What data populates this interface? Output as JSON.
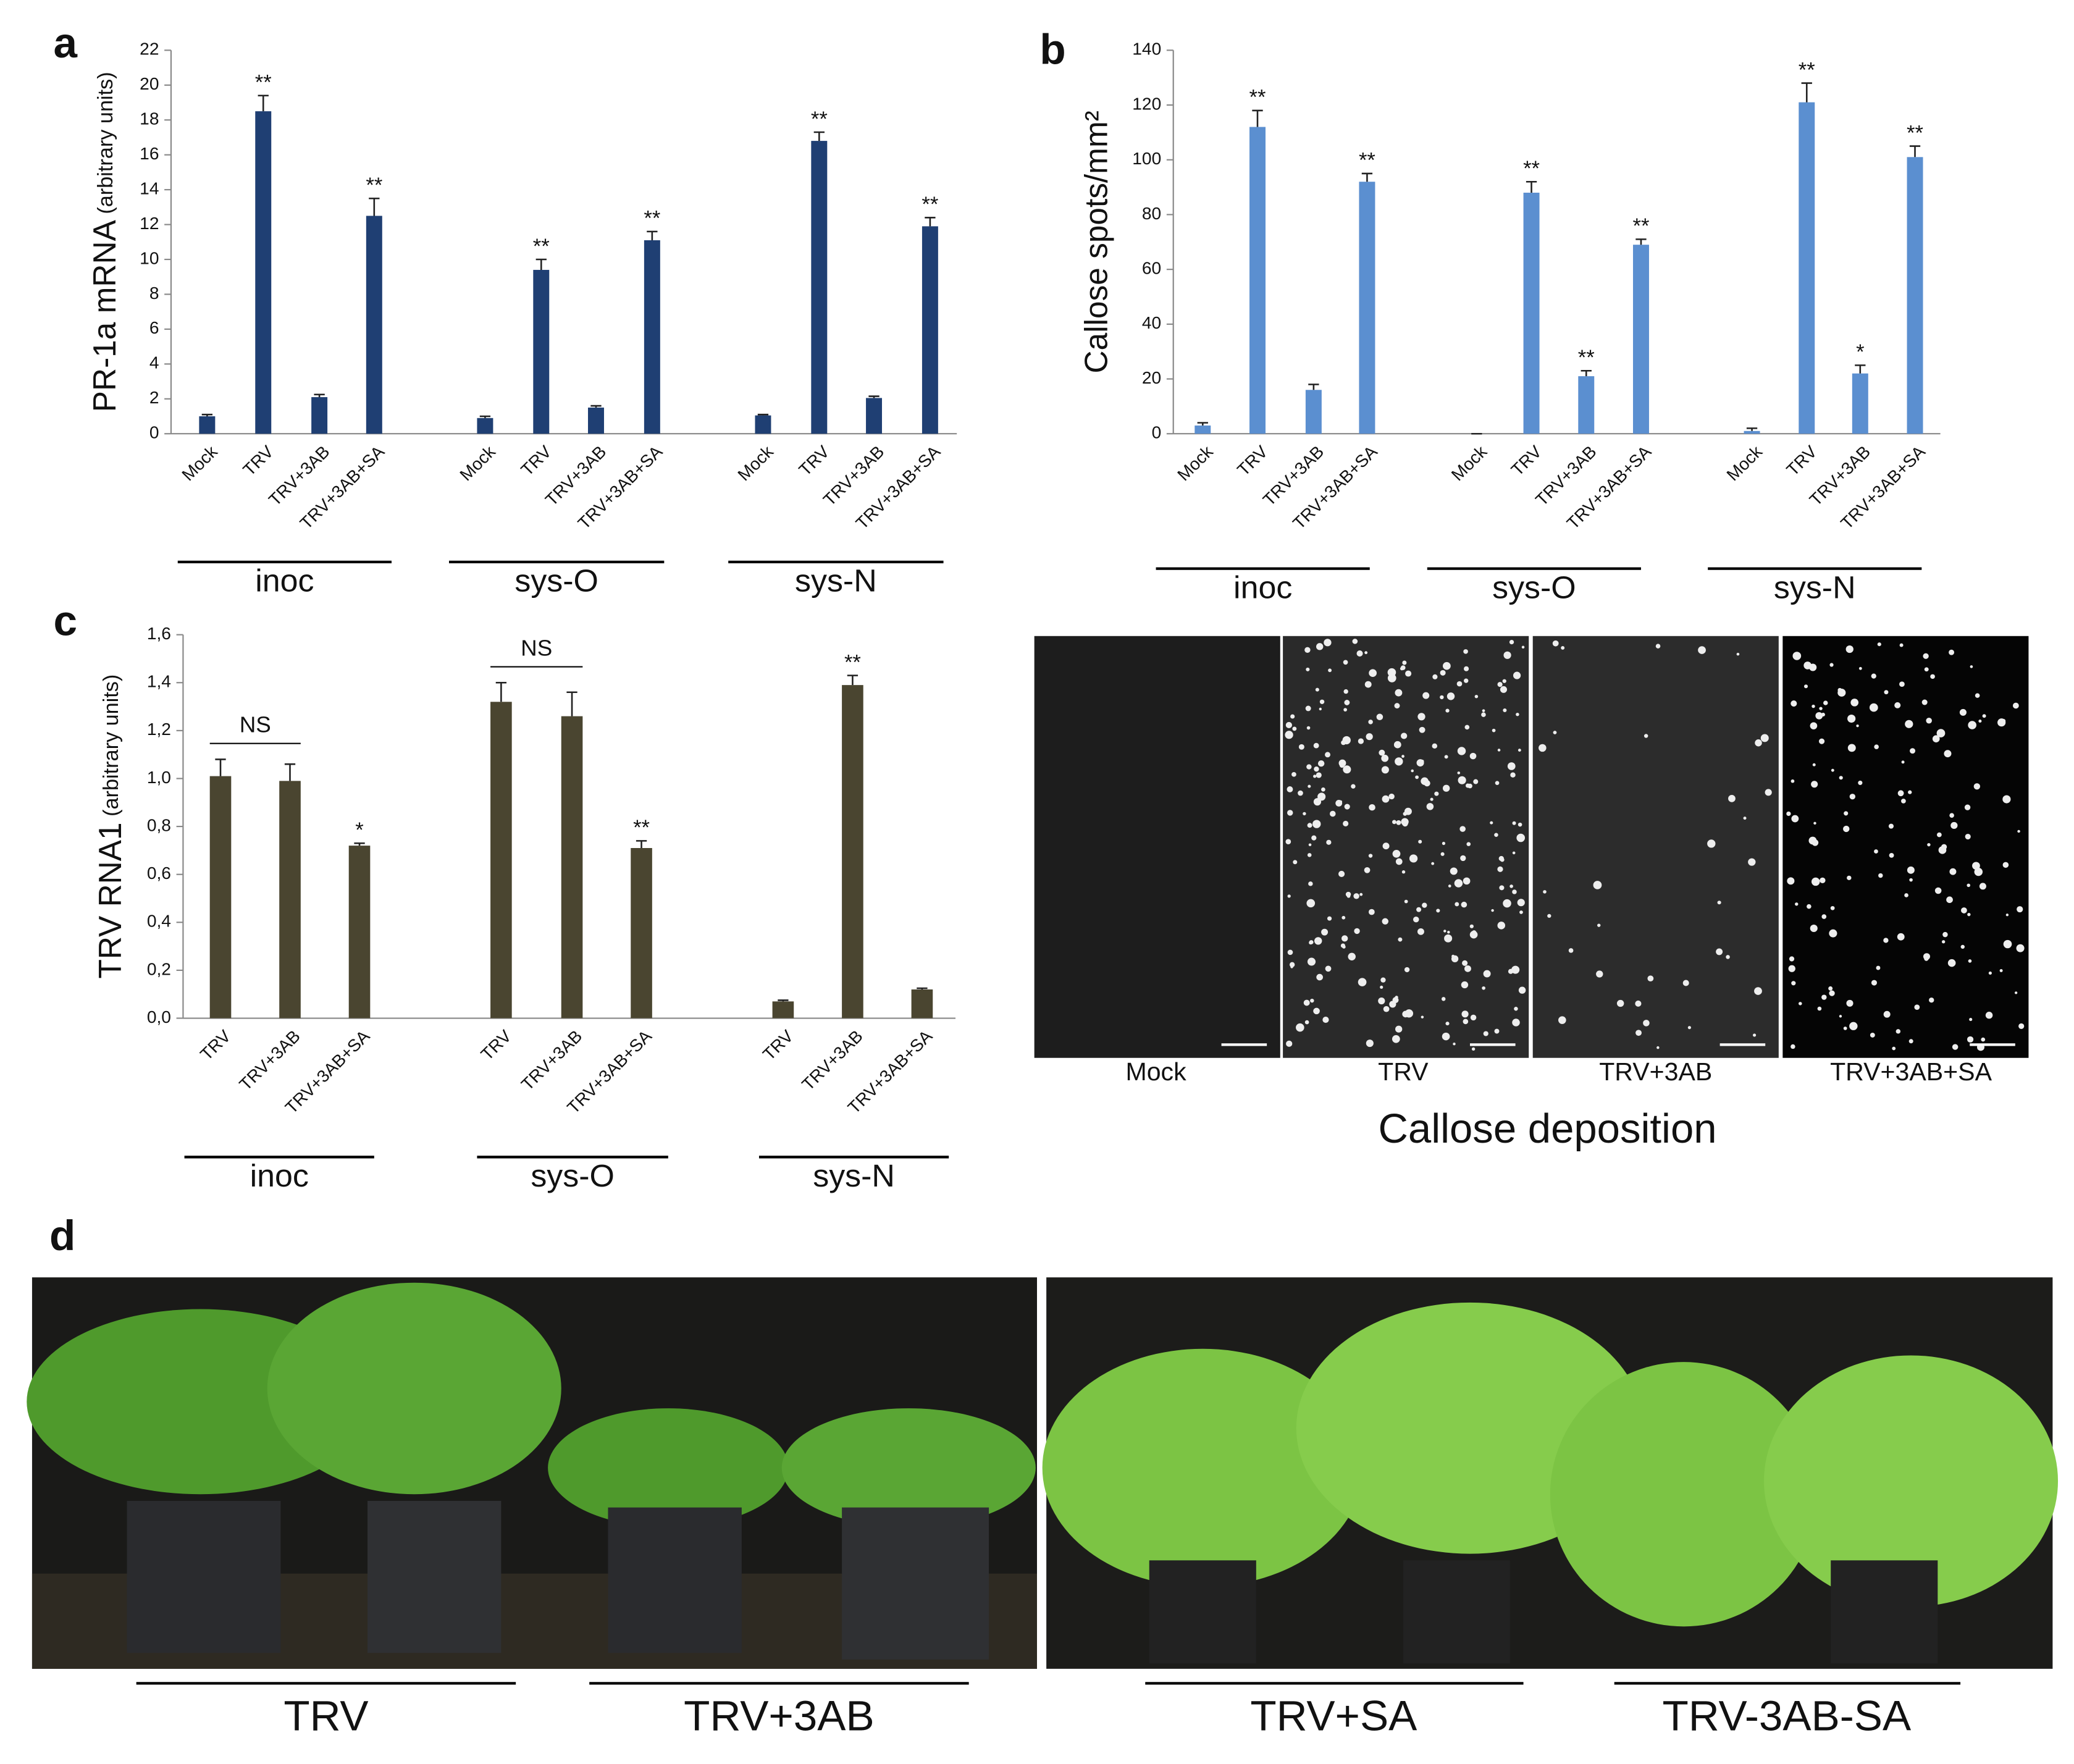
{
  "chart_data": [
    {
      "type": "bar",
      "panel": "a",
      "y_label": "PR-1a mRNA",
      "y_label_unit": "(arbitrary units)",
      "categories": [
        "Mock",
        "TRV",
        "TRV+3AB",
        "TRV+3AB+SA",
        "Mock",
        "TRV",
        "TRV+3AB",
        "TRV+3AB+SA",
        "Mock",
        "TRV",
        "TRV+3AB",
        "TRV+3AB+SA"
      ],
      "group_labels": [
        "inoc",
        "sys-O",
        "sys-N"
      ],
      "values": [
        1.0,
        18.5,
        2.1,
        12.5,
        0.9,
        9.4,
        1.5,
        11.1,
        1.05,
        16.8,
        2.05,
        11.9
      ],
      "errors": [
        0.1,
        0.9,
        0.15,
        1.0,
        0.1,
        0.6,
        0.1,
        0.5,
        0.05,
        0.5,
        0.1,
        0.5
      ],
      "annotations": [
        null,
        "**",
        null,
        "**",
        null,
        "**",
        null,
        "**",
        null,
        "**",
        null,
        "**"
      ],
      "color": "#1f3f73",
      "ylim": [
        0,
        22
      ],
      "yticks": [
        0,
        2,
        4,
        6,
        8,
        10,
        12,
        14,
        16,
        18,
        20,
        22
      ]
    },
    {
      "type": "bar",
      "panel": "b",
      "y_label": "Callose spots/mm²",
      "categories": [
        "Mock",
        "TRV",
        "TRV+3AB",
        "TRV+3AB+SA",
        "Mock",
        "TRV",
        "TRV+3AB",
        "TRV+3AB+SA",
        "Mock",
        "TRV",
        "TRV+3AB",
        "TRV+3AB+SA"
      ],
      "group_labels": [
        "inoc",
        "sys-O",
        "sys-N"
      ],
      "values": [
        3,
        112,
        16,
        92,
        0,
        88,
        21,
        69,
        1,
        121,
        22,
        101
      ],
      "errors": [
        1,
        6,
        2,
        3,
        0,
        4,
        2,
        2,
        1,
        7,
        3,
        4
      ],
      "annotations": [
        null,
        "**",
        null,
        "**",
        null,
        "**",
        "**",
        "**",
        null,
        "**",
        "*",
        "**"
      ],
      "color": "#5b8fd0",
      "ylim": [
        0,
        140
      ],
      "yticks": [
        0,
        20,
        40,
        60,
        80,
        100,
        120,
        140
      ]
    },
    {
      "type": "bar",
      "panel": "c",
      "y_label": "TRV RNA1",
      "y_label_unit": "(arbitrary units)",
      "categories": [
        "TRV",
        "TRV+3AB",
        "TRV+3AB+SA",
        "TRV",
        "TRV+3AB",
        "TRV+3AB+SA",
        "TRV",
        "TRV+3AB",
        "TRV+3AB+SA"
      ],
      "group_labels": [
        "inoc",
        "sys-O",
        "sys-N"
      ],
      "group_annotations": [
        "NS",
        "NS",
        null
      ],
      "values": [
        1.01,
        0.99,
        0.72,
        1.32,
        1.26,
        0.71,
        0.07,
        1.39,
        0.12
      ],
      "errors": [
        0.07,
        0.07,
        0.01,
        0.08,
        0.1,
        0.03,
        0.005,
        0.04,
        0.005
      ],
      "annotations": [
        null,
        null,
        "*",
        null,
        null,
        "**",
        null,
        "**",
        null
      ],
      "color": "#4a4530",
      "ylim": [
        0,
        1.6
      ],
      "yticks": [
        {
          "value": 0,
          "label": "0,0"
        },
        {
          "value": 0.2,
          "label": "0,2"
        },
        {
          "value": 0.4,
          "label": "0,4"
        },
        {
          "value": 0.6,
          "label": "0,6"
        },
        {
          "value": 0.8,
          "label": "0,8"
        },
        {
          "value": 1.0,
          "label": "1,0"
        },
        {
          "value": 1.2,
          "label": "1,2"
        },
        {
          "value": 1.4,
          "label": "1,4"
        },
        {
          "value": 1.6,
          "label": "1,6"
        }
      ]
    }
  ],
  "callose": {
    "panels": [
      "Mock",
      "TRV",
      "TRV+3AB",
      "TRV+3AB+SA"
    ],
    "title": "Callose deposition"
  },
  "photos": {
    "labels": [
      "TRV",
      "TRV+3AB",
      "TRV+SA",
      "TRV-3AB-SA"
    ]
  },
  "panel_labels": [
    "a",
    "b",
    "c",
    "d"
  ]
}
